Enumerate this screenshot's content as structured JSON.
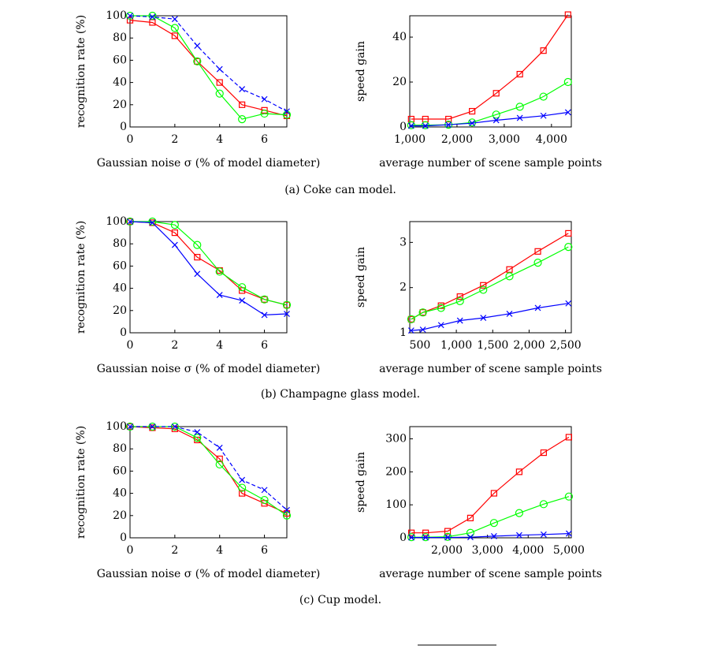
{
  "chart_data": [
    {
      "type": "line",
      "xlabel": "Gaussian noise σ (% of model diameter)",
      "ylabel": "recognition rate (%)",
      "x": [
        0,
        1,
        2,
        3,
        4,
        5,
        6,
        7
      ],
      "xlim": [
        0,
        7
      ],
      "xticks": [
        0,
        2,
        4,
        6
      ],
      "ylim": [
        0,
        100
      ],
      "yticks": [
        0,
        20,
        40,
        60,
        80,
        100
      ],
      "series": [
        {
          "color": "#ff0000",
          "marker": "square",
          "values": [
            96,
            94,
            82,
            59,
            40,
            20,
            15,
            10
          ]
        },
        {
          "color": "#00ff00",
          "marker": "circle",
          "values": [
            100,
            100,
            89,
            59,
            30,
            7,
            12,
            11
          ]
        },
        {
          "color": "#0000ff",
          "marker": "cross",
          "dash": true,
          "values": [
            100,
            99,
            97,
            73,
            52,
            34,
            25,
            14
          ]
        }
      ]
    },
    {
      "type": "line",
      "xlabel": "average number of scene sample points",
      "ylabel": "speed gain",
      "x": [
        1030,
        1330,
        1820,
        2320,
        2830,
        3330,
        3830,
        4350
      ],
      "xlim": [
        1000,
        4420
      ],
      "xticks": [
        {
          "value": 1000,
          "label": "1,000"
        },
        {
          "value": 2000,
          "label": "2,000"
        },
        {
          "value": 3000,
          "label": "3,000"
        },
        {
          "value": 4000,
          "label": "4,000"
        }
      ],
      "ylim": [
        0,
        49.5
      ],
      "yticks": [
        0,
        20,
        40
      ],
      "series": [
        {
          "color": "#ff0000",
          "marker": "square",
          "values": [
            3.5,
            3.5,
            3.5,
            7,
            15,
            23.5,
            34,
            50
          ]
        },
        {
          "color": "#00ff00",
          "marker": "circle",
          "values": [
            0.8,
            0.8,
            1,
            2,
            5.5,
            9,
            13.5,
            20
          ]
        },
        {
          "color": "#0000ff",
          "marker": "cross",
          "values": [
            0.5,
            0.5,
            1,
            1.7,
            3,
            4,
            5,
            6.5
          ]
        }
      ]
    },
    {
      "type": "line",
      "xlabel": "Gaussian noise σ (% of model diameter)",
      "ylabel": "recognition rate (%)",
      "x": [
        0,
        1,
        2,
        3,
        4,
        5,
        6,
        7
      ],
      "xlim": [
        0,
        7
      ],
      "xticks": [
        0,
        2,
        4,
        6
      ],
      "ylim": [
        0,
        100
      ],
      "yticks": [
        0,
        20,
        40,
        60,
        80,
        100
      ],
      "series": [
        {
          "color": "#ff0000",
          "marker": "square",
          "values": [
            100,
            99,
            90,
            68,
            56,
            38,
            30,
            25
          ]
        },
        {
          "color": "#00ff00",
          "marker": "circle",
          "values": [
            100,
            100,
            97,
            79,
            55,
            41,
            30,
            25
          ]
        },
        {
          "color": "#0000ff",
          "marker": "cross",
          "values": [
            100,
            99,
            79,
            53,
            34,
            29,
            16,
            17
          ]
        }
      ]
    },
    {
      "type": "line",
      "xlabel": "average number of scene sample points",
      "ylabel": "speed gain",
      "x": [
        380,
        540,
        790,
        1050,
        1370,
        1730,
        2120,
        2540
      ],
      "xlim": [
        360,
        2580
      ],
      "xticks": [
        500,
        {
          "value": 1000,
          "label": "1,000"
        },
        {
          "value": 1500,
          "label": "1,500"
        },
        {
          "value": 2000,
          "label": "2,000"
        },
        {
          "value": 2500,
          "label": "2,500"
        }
      ],
      "ylim": [
        1,
        3.46
      ],
      "yticks": [
        1,
        2,
        3
      ],
      "series": [
        {
          "color": "#ff0000",
          "marker": "square",
          "values": [
            1.3,
            1.45,
            1.6,
            1.8,
            2.05,
            2.4,
            2.8,
            3.2
          ]
        },
        {
          "color": "#00ff00",
          "marker": "circle",
          "values": [
            1.3,
            1.45,
            1.55,
            1.7,
            1.95,
            2.25,
            2.55,
            2.9
          ]
        },
        {
          "color": "#0000ff",
          "marker": "cross",
          "values": [
            1.05,
            1.07,
            1.17,
            1.27,
            1.33,
            1.42,
            1.55,
            1.65
          ]
        }
      ]
    },
    {
      "type": "line",
      "xlabel": "Gaussian noise σ (% of model diameter)",
      "ylabel": "recognition rate (%)",
      "x": [
        0,
        1,
        2,
        3,
        4,
        5,
        6,
        7
      ],
      "xlim": [
        0,
        7
      ],
      "xticks": [
        0,
        2,
        4,
        6
      ],
      "ylim": [
        0,
        100
      ],
      "yticks": [
        0,
        20,
        40,
        60,
        80,
        100
      ],
      "series": [
        {
          "color": "#ff0000",
          "marker": "square",
          "values": [
            100,
            99,
            98,
            88,
            71,
            40,
            31,
            22
          ]
        },
        {
          "color": "#00ff00",
          "marker": "circle",
          "values": [
            100,
            100,
            100,
            90,
            66,
            45,
            34,
            20
          ]
        },
        {
          "color": "#0000ff",
          "marker": "cross",
          "dash": true,
          "values": [
            100,
            100,
            100,
            95,
            81,
            52,
            43,
            25
          ]
        }
      ]
    },
    {
      "type": "line",
      "xlabel": "average number of scene sample points",
      "ylabel": "speed gain",
      "x": [
        1130,
        1480,
        2020,
        2580,
        3160,
        3780,
        4380,
        5000
      ],
      "xlim": [
        1090,
        5060
      ],
      "xticks": [
        {
          "value": 2000,
          "label": "2,000"
        },
        {
          "value": 3000,
          "label": "3,000"
        },
        {
          "value": 4000,
          "label": "4,000"
        },
        {
          "value": 5000,
          "label": "5,000"
        }
      ],
      "ylim": [
        0,
        337
      ],
      "yticks": [
        0,
        100,
        200,
        300
      ],
      "series": [
        {
          "color": "#ff0000",
          "marker": "square",
          "values": [
            15,
            15,
            20,
            60,
            135,
            200,
            258,
            305
          ]
        },
        {
          "color": "#00ff00",
          "marker": "circle",
          "values": [
            2,
            2,
            3,
            15,
            45,
            75,
            102,
            125
          ]
        },
        {
          "color": "#0000ff",
          "marker": "cross",
          "values": [
            1,
            1,
            1,
            2,
            5,
            8,
            10,
            13
          ]
        }
      ]
    }
  ],
  "captions": [
    "(a) Coke can model.",
    "(b) Champagne glass model.",
    "(c) Cup model."
  ]
}
